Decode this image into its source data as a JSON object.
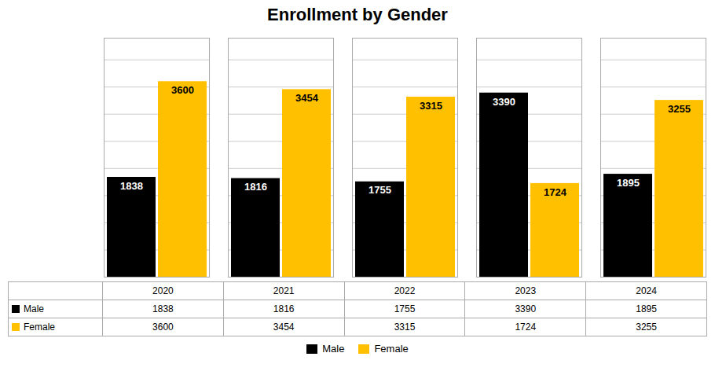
{
  "chart_data": {
    "type": "bar",
    "title": "Enrollment by Gender",
    "categories": [
      "2020",
      "2021",
      "2022",
      "2023",
      "2024"
    ],
    "series": [
      {
        "name": "Male",
        "color": "#000000",
        "values": [
          1838,
          1816,
          1755,
          3390,
          1895
        ]
      },
      {
        "name": "Female",
        "color": "#FFC000",
        "values": [
          3600,
          3454,
          3315,
          1724,
          3255
        ]
      }
    ],
    "ylim": [
      0,
      4400
    ],
    "yticks": [
      500,
      1000,
      1500,
      2000,
      2500,
      3000,
      3500,
      4000
    ],
    "grid": true,
    "tick_labels": false,
    "data_labels": true,
    "legend": "bottom"
  }
}
